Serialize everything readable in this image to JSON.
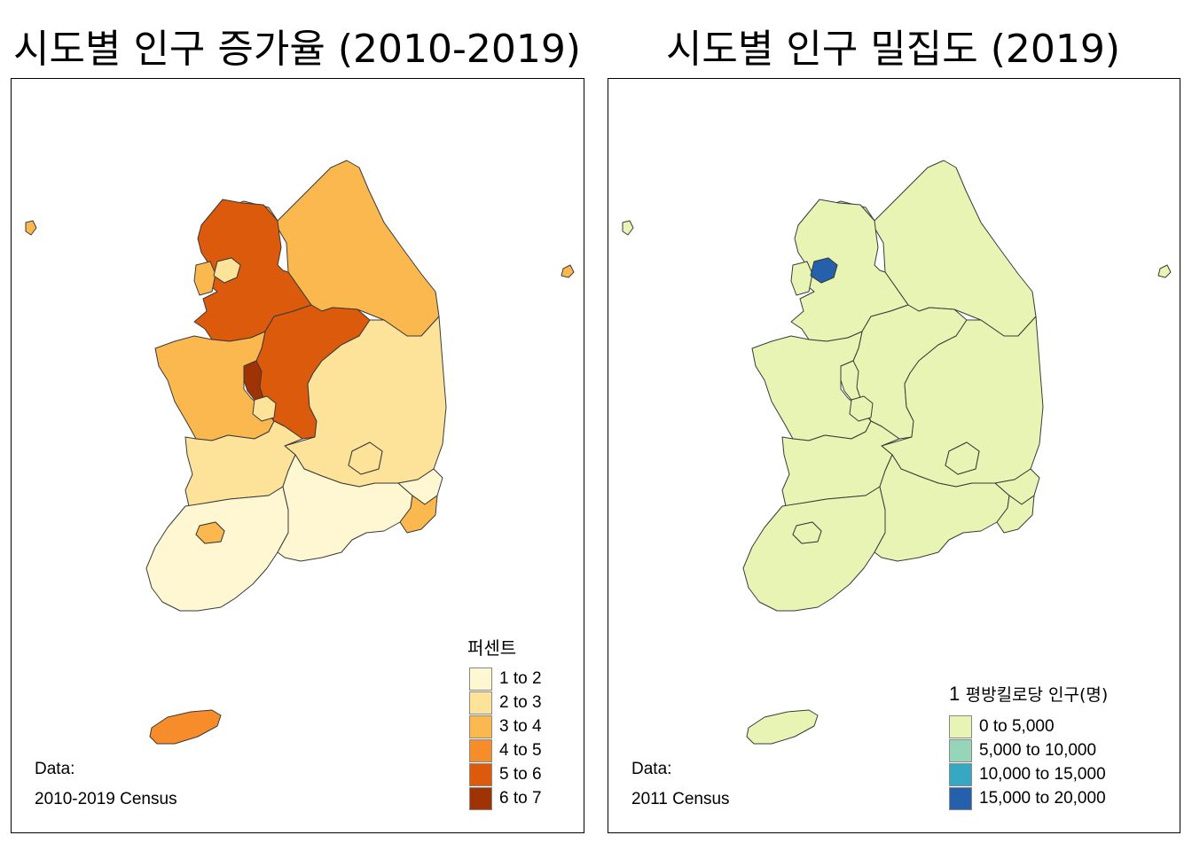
{
  "maps": [
    {
      "title": "시도별 인구 증가율 (2010-2019)",
      "legend_title": "퍼센트",
      "legend": [
        {
          "label": "1 to 2",
          "color": "#fff7d1"
        },
        {
          "label": "2 to 3",
          "color": "#fde39a"
        },
        {
          "label": "3 to 4",
          "color": "#fbb84e"
        },
        {
          "label": "4 to 5",
          "color": "#f78c2a"
        },
        {
          "label": "5 to 6",
          "color": "#db5a0c"
        },
        {
          "label": "6 to 7",
          "color": "#a03306"
        }
      ],
      "source_label": "Data:",
      "source_text": "2010-2019 Census",
      "regions": {
        "gangwon": "3 to 4",
        "gyeonggi": "5 to 6",
        "seoul": "2 to 3",
        "incheon": "3 to 4",
        "chungbuk": "5 to 6",
        "chungnam": "3 to 4",
        "sejong": "6 to 7",
        "daejeon": "2 to 3",
        "gyeongbuk": "2 to 3",
        "daegu": "2 to 3",
        "jeonbuk": "2 to 3",
        "jeonnam": "1 to 2",
        "gwangju": "3 to 4",
        "gyeongnam": "1 to 2",
        "ulsan": "1 to 2",
        "busan": "3 to 4",
        "jeju": "4 to 5",
        "ulleung": "3 to 4"
      }
    },
    {
      "title": "시도별 인구 밀집도 (2019)",
      "legend_title_num": "1",
      "legend_title": "평방킬로당 인구(명)",
      "legend": [
        {
          "label": "0 to 5,000",
          "color": "#e8f4b4"
        },
        {
          "label": "5,000 to 10,000",
          "color": "#96d6b8"
        },
        {
          "label": "10,000 to 15,000",
          "color": "#36a8c4"
        },
        {
          "label": "15,000 to 20,000",
          "color": "#2460ac"
        }
      ],
      "source_label": "Data:",
      "source_text": "2011 Census",
      "regions": {
        "gangwon": "0 to 5,000",
        "gyeonggi": "0 to 5,000",
        "seoul": "15,000 to 20,000",
        "incheon": "0 to 5,000",
        "chungbuk": "0 to 5,000",
        "chungnam": "0 to 5,000",
        "sejong": "0 to 5,000",
        "daejeon": "0 to 5,000",
        "gyeongbuk": "0 to 5,000",
        "daegu": "0 to 5,000",
        "jeonbuk": "0 to 5,000",
        "jeonnam": "0 to 5,000",
        "gwangju": "0 to 5,000",
        "gyeongnam": "0 to 5,000",
        "ulsan": "0 to 5,000",
        "busan": "0 to 5,000",
        "jeju": "0 to 5,000",
        "ulleung": "0 to 5,000"
      }
    }
  ]
}
